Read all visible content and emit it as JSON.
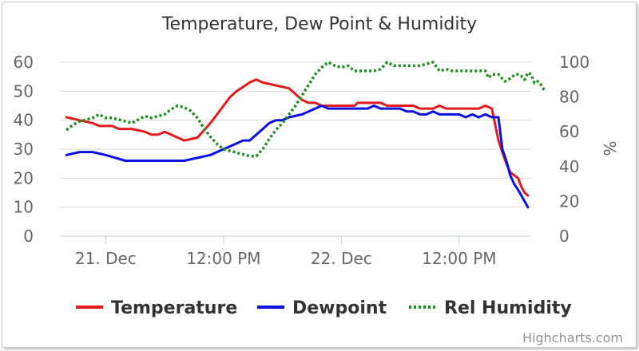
{
  "chart_data": {
    "type": "line",
    "title": "Temperature, Dew Point & Humidity",
    "credits": "Highcharts.com",
    "y_left": {
      "ticks": [
        0,
        10,
        20,
        30,
        40,
        50,
        60
      ],
      "range": [
        0,
        60
      ]
    },
    "y_right": {
      "title": "%",
      "ticks": [
        0,
        20,
        40,
        60,
        80,
        100
      ],
      "range": [
        0,
        100
      ]
    },
    "x_axis": {
      "unit": "hours since 21 Dec 00:00",
      "range": [
        -7,
        65
      ],
      "tick_values": [
        0,
        18,
        36,
        54
      ],
      "tick_labels": [
        "21. Dec",
        "12:00 PM",
        "22. Dec",
        "12:00 PM"
      ]
    },
    "grid": true,
    "legend_position": "bottom",
    "series": [
      {
        "name": "Temperature",
        "axis": "left",
        "color": "#e31a1c",
        "dash": "solid",
        "points": [
          [
            -6,
            41
          ],
          [
            -4,
            40
          ],
          [
            -2,
            39
          ],
          [
            -1,
            38
          ],
          [
            0,
            38
          ],
          [
            1,
            38
          ],
          [
            2,
            37
          ],
          [
            4,
            37
          ],
          [
            6,
            36
          ],
          [
            7,
            35
          ],
          [
            8,
            35
          ],
          [
            9,
            36
          ],
          [
            10,
            35
          ],
          [
            11,
            34
          ],
          [
            12,
            33
          ],
          [
            14,
            34
          ],
          [
            16,
            39
          ],
          [
            17,
            42
          ],
          [
            18,
            45
          ],
          [
            19,
            48
          ],
          [
            20,
            50
          ],
          [
            22,
            53
          ],
          [
            23,
            54
          ],
          [
            24,
            53
          ],
          [
            26,
            52
          ],
          [
            28,
            51
          ],
          [
            30,
            47
          ],
          [
            31,
            46
          ],
          [
            32,
            46
          ],
          [
            33,
            45
          ],
          [
            34,
            45
          ],
          [
            35,
            45
          ],
          [
            36,
            45
          ],
          [
            37,
            45
          ],
          [
            38,
            45
          ],
          [
            38.5,
            46
          ],
          [
            40,
            46
          ],
          [
            41,
            46
          ],
          [
            42,
            46
          ],
          [
            43,
            45
          ],
          [
            44,
            45
          ],
          [
            45,
            45
          ],
          [
            46,
            45
          ],
          [
            47,
            45
          ],
          [
            48,
            44
          ],
          [
            49,
            44
          ],
          [
            50,
            44
          ],
          [
            51,
            45
          ],
          [
            52,
            44
          ],
          [
            53,
            44
          ],
          [
            54,
            44
          ],
          [
            55,
            44
          ],
          [
            56,
            44
          ],
          [
            57,
            44
          ],
          [
            58,
            45
          ],
          [
            59,
            44
          ],
          [
            60,
            33
          ],
          [
            60.6,
            29
          ],
          [
            61.2,
            25
          ],
          [
            61.8,
            22
          ],
          [
            62.4,
            21
          ],
          [
            63,
            20
          ],
          [
            63.5,
            17
          ],
          [
            64,
            15
          ],
          [
            64.5,
            14
          ]
        ]
      },
      {
        "name": "Dewpoint",
        "axis": "left",
        "color": "#0a10e0",
        "dash": "solid",
        "points": [
          [
            -6,
            28
          ],
          [
            -4,
            29
          ],
          [
            -2,
            29
          ],
          [
            0,
            28
          ],
          [
            3,
            26
          ],
          [
            6,
            26
          ],
          [
            9,
            26
          ],
          [
            12,
            26
          ],
          [
            14,
            27
          ],
          [
            16,
            28
          ],
          [
            17,
            29
          ],
          [
            18,
            30
          ],
          [
            19,
            31
          ],
          [
            20,
            32
          ],
          [
            21,
            33
          ],
          [
            22,
            33
          ],
          [
            24,
            37
          ],
          [
            25,
            39
          ],
          [
            26,
            40
          ],
          [
            27,
            40
          ],
          [
            28,
            41
          ],
          [
            30,
            42
          ],
          [
            31,
            43
          ],
          [
            32,
            44
          ],
          [
            33,
            45
          ],
          [
            34,
            44
          ],
          [
            35,
            44
          ],
          [
            36,
            44
          ],
          [
            37,
            44
          ],
          [
            38,
            44
          ],
          [
            39,
            44
          ],
          [
            40,
            44
          ],
          [
            41,
            45
          ],
          [
            42,
            44
          ],
          [
            43,
            44
          ],
          [
            44,
            44
          ],
          [
            45,
            44
          ],
          [
            46,
            43
          ],
          [
            47,
            43
          ],
          [
            48,
            42
          ],
          [
            49,
            42
          ],
          [
            50,
            43
          ],
          [
            51,
            42
          ],
          [
            52,
            42
          ],
          [
            53,
            42
          ],
          [
            54,
            42
          ],
          [
            55,
            41
          ],
          [
            56,
            42
          ],
          [
            57,
            41
          ],
          [
            58,
            42
          ],
          [
            59,
            41
          ],
          [
            60,
            41
          ],
          [
            60.6,
            30
          ],
          [
            61.2,
            26
          ],
          [
            61.8,
            21
          ],
          [
            62.4,
            18
          ],
          [
            63,
            16
          ],
          [
            63.5,
            14
          ],
          [
            64,
            12
          ],
          [
            64.5,
            10
          ]
        ]
      },
      {
        "name": "Rel Humidity",
        "axis": "right",
        "color": "#228b22",
        "dash": "dotted",
        "points": [
          [
            -6,
            61
          ],
          [
            -5,
            64
          ],
          [
            -4,
            66
          ],
          [
            -2,
            68
          ],
          [
            -1,
            70
          ],
          [
            0,
            68
          ],
          [
            1,
            68
          ],
          [
            2,
            67
          ],
          [
            3,
            66
          ],
          [
            4,
            65
          ],
          [
            5,
            67
          ],
          [
            6,
            69
          ],
          [
            7,
            68
          ],
          [
            8,
            69
          ],
          [
            9,
            70
          ],
          [
            10,
            73
          ],
          [
            11,
            75
          ],
          [
            12,
            74
          ],
          [
            13,
            72
          ],
          [
            14,
            68
          ],
          [
            15,
            62
          ],
          [
            16,
            57
          ],
          [
            17,
            53
          ],
          [
            18,
            50
          ],
          [
            19,
            49
          ],
          [
            20,
            48
          ],
          [
            21,
            47
          ],
          [
            22,
            46
          ],
          [
            23,
            46
          ],
          [
            24,
            50
          ],
          [
            25,
            56
          ],
          [
            26,
            61
          ],
          [
            27,
            65
          ],
          [
            28,
            70
          ],
          [
            29,
            75
          ],
          [
            30,
            81
          ],
          [
            31,
            87
          ],
          [
            32,
            93
          ],
          [
            33,
            97
          ],
          [
            34,
            100
          ],
          [
            35,
            98
          ],
          [
            36,
            97
          ],
          [
            37,
            98
          ],
          [
            38,
            95
          ],
          [
            39,
            95
          ],
          [
            40,
            95
          ],
          [
            41,
            95
          ],
          [
            42,
            96
          ],
          [
            43,
            100
          ],
          [
            44,
            98
          ],
          [
            45,
            98
          ],
          [
            46,
            98
          ],
          [
            47,
            98
          ],
          [
            48,
            98
          ],
          [
            49,
            99
          ],
          [
            50,
            100
          ],
          [
            51,
            95
          ],
          [
            52,
            96
          ],
          [
            53,
            95
          ],
          [
            54,
            95
          ],
          [
            55,
            95
          ],
          [
            56,
            95
          ],
          [
            57,
            95
          ],
          [
            58,
            95
          ],
          [
            58.5,
            91
          ],
          [
            59,
            93
          ],
          [
            60,
            93
          ],
          [
            61,
            89
          ],
          [
            62,
            91
          ],
          [
            62.5,
            93
          ],
          [
            63,
            93
          ],
          [
            63.5,
            92
          ],
          [
            64,
            90
          ],
          [
            64.5,
            94
          ],
          [
            65,
            93
          ],
          [
            65.5,
            88
          ],
          [
            66,
            89
          ],
          [
            66.5,
            87
          ],
          [
            67,
            84
          ]
        ]
      }
    ]
  }
}
